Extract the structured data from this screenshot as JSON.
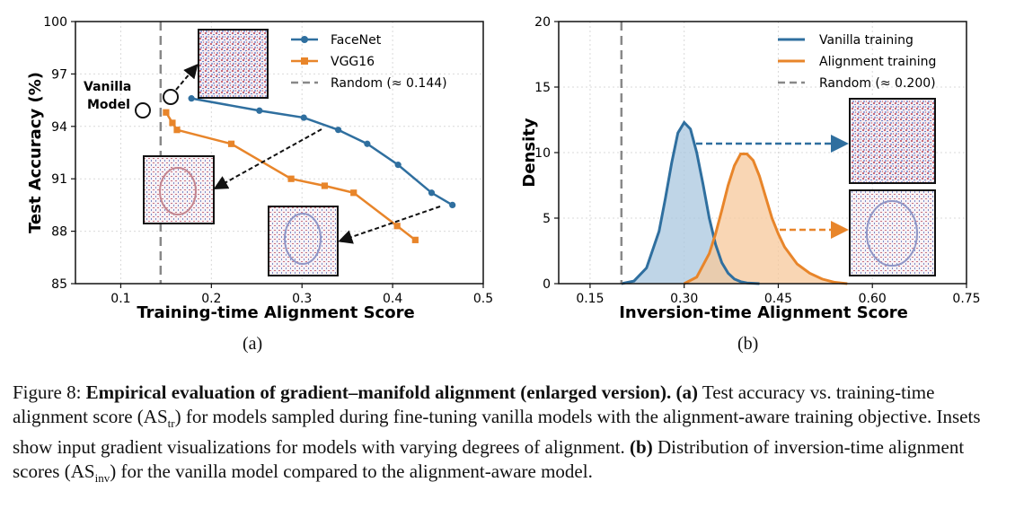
{
  "chart_data": [
    {
      "type": "line",
      "xlabel": "Training-time Alignment Score",
      "ylabel": "Test Accuracy (%)",
      "xlim": [
        0.05,
        0.5
      ],
      "ylim": [
        85,
        100
      ],
      "xticks": [
        "0.1",
        "0.2",
        "0.3",
        "0.4",
        "0.5"
      ],
      "yticks": [
        "85",
        "88",
        "91",
        "94",
        "97",
        "100"
      ],
      "grid": true,
      "legend_position": "top-right",
      "series": [
        {
          "name": "FaceNet",
          "color": "#2f6f9f",
          "marker": "circle",
          "x": [
            0.178,
            0.253,
            0.302,
            0.34,
            0.372,
            0.406,
            0.443,
            0.466
          ],
          "y": [
            95.6,
            94.9,
            94.5,
            93.8,
            93.0,
            91.8,
            90.2,
            89.5
          ]
        },
        {
          "name": "VGG16",
          "color": "#e8852a",
          "marker": "square",
          "x": [
            0.15,
            0.157,
            0.162,
            0.222,
            0.288,
            0.325,
            0.357,
            0.405,
            0.425
          ],
          "y": [
            94.8,
            94.2,
            93.8,
            93.0,
            91.0,
            90.6,
            90.2,
            88.3,
            87.5
          ]
        },
        {
          "name": "Random (≈ 0.144)",
          "color": "#888888",
          "style": "dashed",
          "x_value": 0.144
        }
      ],
      "annotation": "Vanilla Model"
    },
    {
      "type": "area",
      "xlabel": "Inversion-time Alignment Score",
      "ylabel": "Density",
      "xlim": [
        0.1,
        0.75
      ],
      "ylim": [
        0,
        20
      ],
      "xticks": [
        "0.15",
        "0.30",
        "0.45",
        "0.60",
        "0.75"
      ],
      "yticks": [
        "0",
        "5",
        "10",
        "15",
        "20"
      ],
      "grid": true,
      "legend_position": "top-right",
      "series": [
        {
          "name": "Vanilla training",
          "color": "#2f6f9f",
          "fill": "#a9c7df",
          "x": [
            0.2,
            0.22,
            0.24,
            0.26,
            0.27,
            0.28,
            0.29,
            0.3,
            0.31,
            0.32,
            0.33,
            0.34,
            0.35,
            0.36,
            0.37,
            0.38,
            0.39,
            0.4,
            0.42
          ],
          "y": [
            0,
            0.2,
            1.2,
            4.0,
            6.5,
            9.2,
            11.5,
            12.3,
            11.8,
            10.0,
            7.6,
            5.0,
            3.0,
            1.6,
            0.8,
            0.35,
            0.15,
            0.05,
            0
          ]
        },
        {
          "name": "Alignment training",
          "color": "#e8852a",
          "fill": "#f7c89b",
          "x": [
            0.3,
            0.32,
            0.34,
            0.35,
            0.36,
            0.37,
            0.38,
            0.39,
            0.4,
            0.41,
            0.42,
            0.43,
            0.44,
            0.45,
            0.46,
            0.48,
            0.5,
            0.52,
            0.54,
            0.56
          ],
          "y": [
            0,
            0.5,
            2.3,
            3.8,
            5.6,
            7.5,
            9.0,
            9.9,
            9.9,
            9.4,
            8.2,
            6.6,
            5.0,
            3.8,
            2.8,
            1.5,
            0.8,
            0.35,
            0.1,
            0
          ]
        },
        {
          "name": "Random (≈ 0.200)",
          "color": "#888888",
          "style": "dashed",
          "x_value": 0.2
        }
      ]
    }
  ],
  "labels": {
    "a": "(a)",
    "b": "(b)"
  },
  "caption": {
    "fig": "Figure 8:",
    "title": "Empirical evaluation of gradient–manifold alignment (enlarged version).",
    "a_tag": "(a)",
    "a_text1": "Test accuracy vs. training-time alignment score (AS",
    "a_sub": "tr",
    "a_text2": ") for models sampled during fine-tuning vanilla models with the alignment-aware training objective. Insets show input gradient visualizations for models with varying degrees of alignment.",
    "b_tag": "(b)",
    "b_text1": "Distribution of inversion-time alignment scores (AS",
    "b_sub": "inv",
    "b_text2": ") for the vanilla model compared to the alignment-aware model."
  }
}
